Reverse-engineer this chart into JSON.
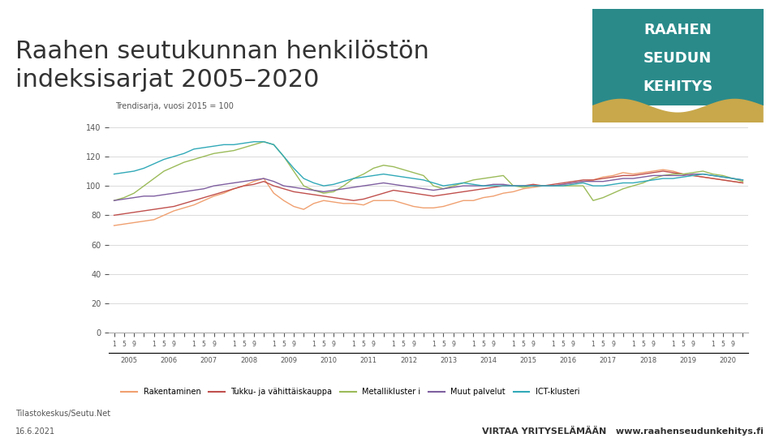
{
  "title": "Raahen seutukunnan henkilöstön\nindeksisarjat 2005–2020",
  "subtitle": "Trendisarja, vuosi 2015 = 100",
  "bg_color": "#ffffff",
  "chart_bg": "#ffffff",
  "years": [
    2005,
    2006,
    2007,
    2008,
    2009,
    2010,
    2011,
    2012,
    2013,
    2014,
    2015,
    2016,
    2017,
    2018,
    2019,
    2020
  ],
  "quarters_per_year": 4,
  "series": {
    "Rakentaminen": {
      "color": "#f0a070",
      "values": [
        73,
        74,
        75,
        76,
        77,
        80,
        83,
        85,
        87,
        90,
        93,
        95,
        98,
        100,
        103,
        105,
        95,
        90,
        86,
        84,
        88,
        90,
        89,
        88,
        88,
        87,
        90,
        90,
        90,
        88,
        86,
        85,
        85,
        86,
        88,
        90,
        90,
        92,
        93,
        95,
        96,
        98,
        99,
        100,
        100,
        101,
        102,
        103,
        104,
        106,
        107,
        109,
        108,
        109,
        110,
        111,
        110,
        108,
        107,
        106,
        105,
        104,
        103,
        102
      ]
    },
    "Tukku- ja vähittäiskauppa": {
      "color": "#c0504d",
      "values": [
        80,
        81,
        82,
        83,
        84,
        85,
        86,
        88,
        90,
        92,
        94,
        96,
        98,
        100,
        101,
        103,
        100,
        98,
        96,
        95,
        94,
        93,
        92,
        91,
        90,
        91,
        93,
        95,
        97,
        96,
        95,
        94,
        93,
        94,
        95,
        96,
        97,
        98,
        99,
        100,
        100,
        100,
        101,
        100,
        101,
        102,
        103,
        104,
        104,
        105,
        106,
        107,
        107,
        108,
        109,
        110,
        109,
        108,
        107,
        106,
        105,
        104,
        103,
        102
      ]
    },
    "Metallikluster i": {
      "color": "#9bbb59",
      "values": [
        90,
        92,
        95,
        100,
        105,
        110,
        113,
        116,
        118,
        120,
        122,
        123,
        124,
        126,
        128,
        130,
        128,
        120,
        110,
        100,
        97,
        95,
        96,
        100,
        105,
        108,
        112,
        114,
        113,
        111,
        109,
        107,
        100,
        98,
        100,
        102,
        104,
        105,
        106,
        107,
        100,
        99,
        100,
        100,
        100,
        100,
        100,
        100,
        90,
        92,
        95,
        98,
        100,
        102,
        105,
        107,
        108,
        108,
        109,
        110,
        108,
        107,
        105,
        103
      ]
    },
    "Muut palvelut": {
      "color": "#7f5fa0",
      "values": [
        90,
        91,
        92,
        93,
        93,
        94,
        95,
        96,
        97,
        98,
        100,
        101,
        102,
        103,
        104,
        105,
        103,
        100,
        99,
        98,
        97,
        96,
        97,
        98,
        99,
        100,
        101,
        102,
        101,
        100,
        99,
        98,
        97,
        98,
        99,
        100,
        100,
        100,
        101,
        101,
        100,
        100,
        100,
        100,
        100,
        101,
        102,
        103,
        103,
        103,
        104,
        105,
        105,
        106,
        107,
        107,
        107,
        107,
        108,
        108,
        107,
        106,
        105,
        104
      ]
    },
    "ICT-klusteri": {
      "color": "#31a9b8",
      "values": [
        108,
        109,
        110,
        112,
        115,
        118,
        120,
        122,
        125,
        126,
        127,
        128,
        128,
        129,
        130,
        130,
        128,
        120,
        112,
        105,
        102,
        100,
        101,
        103,
        105,
        106,
        107,
        108,
        107,
        106,
        105,
        104,
        102,
        100,
        101,
        102,
        101,
        100,
        100,
        100,
        100,
        100,
        100,
        100,
        100,
        100,
        101,
        102,
        100,
        100,
        101,
        102,
        102,
        103,
        104,
        105,
        105,
        106,
        107,
        108,
        107,
        106,
        105,
        104
      ]
    }
  },
  "ylim": [
    0,
    140
  ],
  "yticks": [
    0,
    20,
    40,
    60,
    80,
    100,
    120,
    140
  ],
  "footer_left": "Tilastokeskus/Seutu.Net",
  "footer_date": "16.6.2021",
  "footer_right": "VIRTAA YRITYSELÄMÄÄN   www.raahenseudunkehitys.fi",
  "logo_bg": "#2a8a8a",
  "logo_text": [
    "RAAHEN",
    "SEUDUN",
    "KEHITYS"
  ],
  "logo_wave_color": "#c8a84b"
}
